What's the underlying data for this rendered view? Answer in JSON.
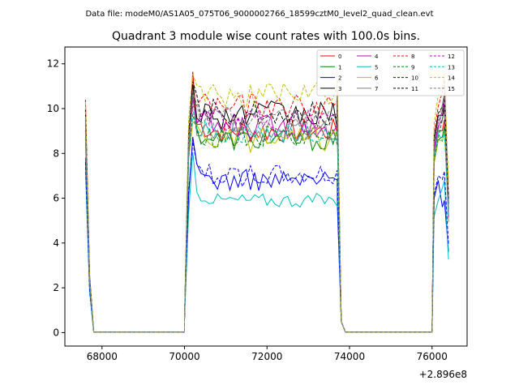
{
  "figure": {
    "suptitle": "Data file: modeM0/AS1A05_075T06_9000002766_18599cztM0_level2_quad_clean.evt"
  },
  "chart_data": {
    "type": "line",
    "title": "Quadrant 3 module wise count rates with 100.0s bins.",
    "xlabel": "",
    "ylabel": "",
    "x_offset_label": "+2.896e8",
    "xlim": [
      67100,
      76850
    ],
    "ylim": [
      -0.6,
      12.75
    ],
    "xticks": [
      68000,
      70000,
      72000,
      74000,
      76000
    ],
    "yticks": [
      0,
      2,
      4,
      6,
      8,
      10,
      12
    ],
    "grid": false,
    "legend_position": "top-right",
    "segments": [
      {
        "start": 67600,
        "n": 3
      },
      {
        "start": 70000,
        "n": 38
      },
      {
        "start": 76000,
        "n": 5
      }
    ],
    "gaps": [
      {
        "from": 67800,
        "to": 70000
      },
      {
        "from": 73700,
        "to": 76000
      }
    ],
    "series": [
      {
        "name": "0",
        "color": "#ff0000",
        "dash": false,
        "level": 9.0,
        "amp": 0.35,
        "start_val": 10.4,
        "end_val": 9.5
      },
      {
        "name": "1",
        "color": "#008000",
        "dash": false,
        "level": 8.6,
        "amp": 0.3,
        "start_val": 9.6,
        "end_val": 9.2
      },
      {
        "name": "2",
        "color": "#0000ff",
        "dash": false,
        "level": 6.8,
        "amp": 0.3,
        "start_val": 7.8,
        "end_val": 5.9
      },
      {
        "name": "3",
        "color": "#000000",
        "dash": false,
        "level": 9.7,
        "amp": 0.4,
        "start_val": 9.9,
        "end_val": 10.2
      },
      {
        "name": "4",
        "color": "#bf00bf",
        "dash": false,
        "level": 9.2,
        "amp": 0.35,
        "start_val": 9.3,
        "end_val": 10.0
      },
      {
        "name": "5",
        "color": "#00bfbf",
        "dash": false,
        "level": 5.9,
        "amp": 0.2,
        "start_val": 7.2,
        "end_val": 6.8
      },
      {
        "name": "6",
        "color": "#bfbf00",
        "dash": false,
        "level": 8.6,
        "amp": 0.35,
        "start_val": 8.4,
        "end_val": 9.0
      },
      {
        "name": "7",
        "color": "#808080",
        "dash": false,
        "level": 9.0,
        "amp": 0.35,
        "start_val": 9.5,
        "end_val": 10.5
      },
      {
        "name": "8",
        "color": "#ff0000",
        "dash": true,
        "level": 10.1,
        "amp": 0.35,
        "start_val": 9.0,
        "end_val": 11.3
      },
      {
        "name": "9",
        "color": "#008000",
        "dash": true,
        "level": 8.7,
        "amp": 0.35,
        "start_val": 8.7,
        "end_val": 10.0
      },
      {
        "name": "10",
        "color": "#0000ff",
        "dash": true,
        "level": 7.0,
        "amp": 0.3,
        "start_val": 7.6,
        "end_val": 7.2
      },
      {
        "name": "11",
        "color": "#000000",
        "dash": true,
        "level": 9.8,
        "amp": 0.35,
        "start_val": 10.0,
        "end_val": 10.6
      },
      {
        "name": "12",
        "color": "#bf00bf",
        "dash": true,
        "level": 9.4,
        "amp": 0.35,
        "start_val": 9.4,
        "end_val": 10.4
      },
      {
        "name": "13",
        "color": "#00bfbf",
        "dash": true,
        "level": 8.9,
        "amp": 0.3,
        "start_val": 8.9,
        "end_val": 9.0
      },
      {
        "name": "14",
        "color": "#bfbf00",
        "dash": true,
        "level": 10.6,
        "amp": 0.35,
        "start_val": 10.3,
        "end_val": 11.6
      },
      {
        "name": "15",
        "color": "#808080",
        "dash": true,
        "level": 9.5,
        "amp": 0.35,
        "start_val": 9.6,
        "end_val": 10.7
      }
    ]
  }
}
